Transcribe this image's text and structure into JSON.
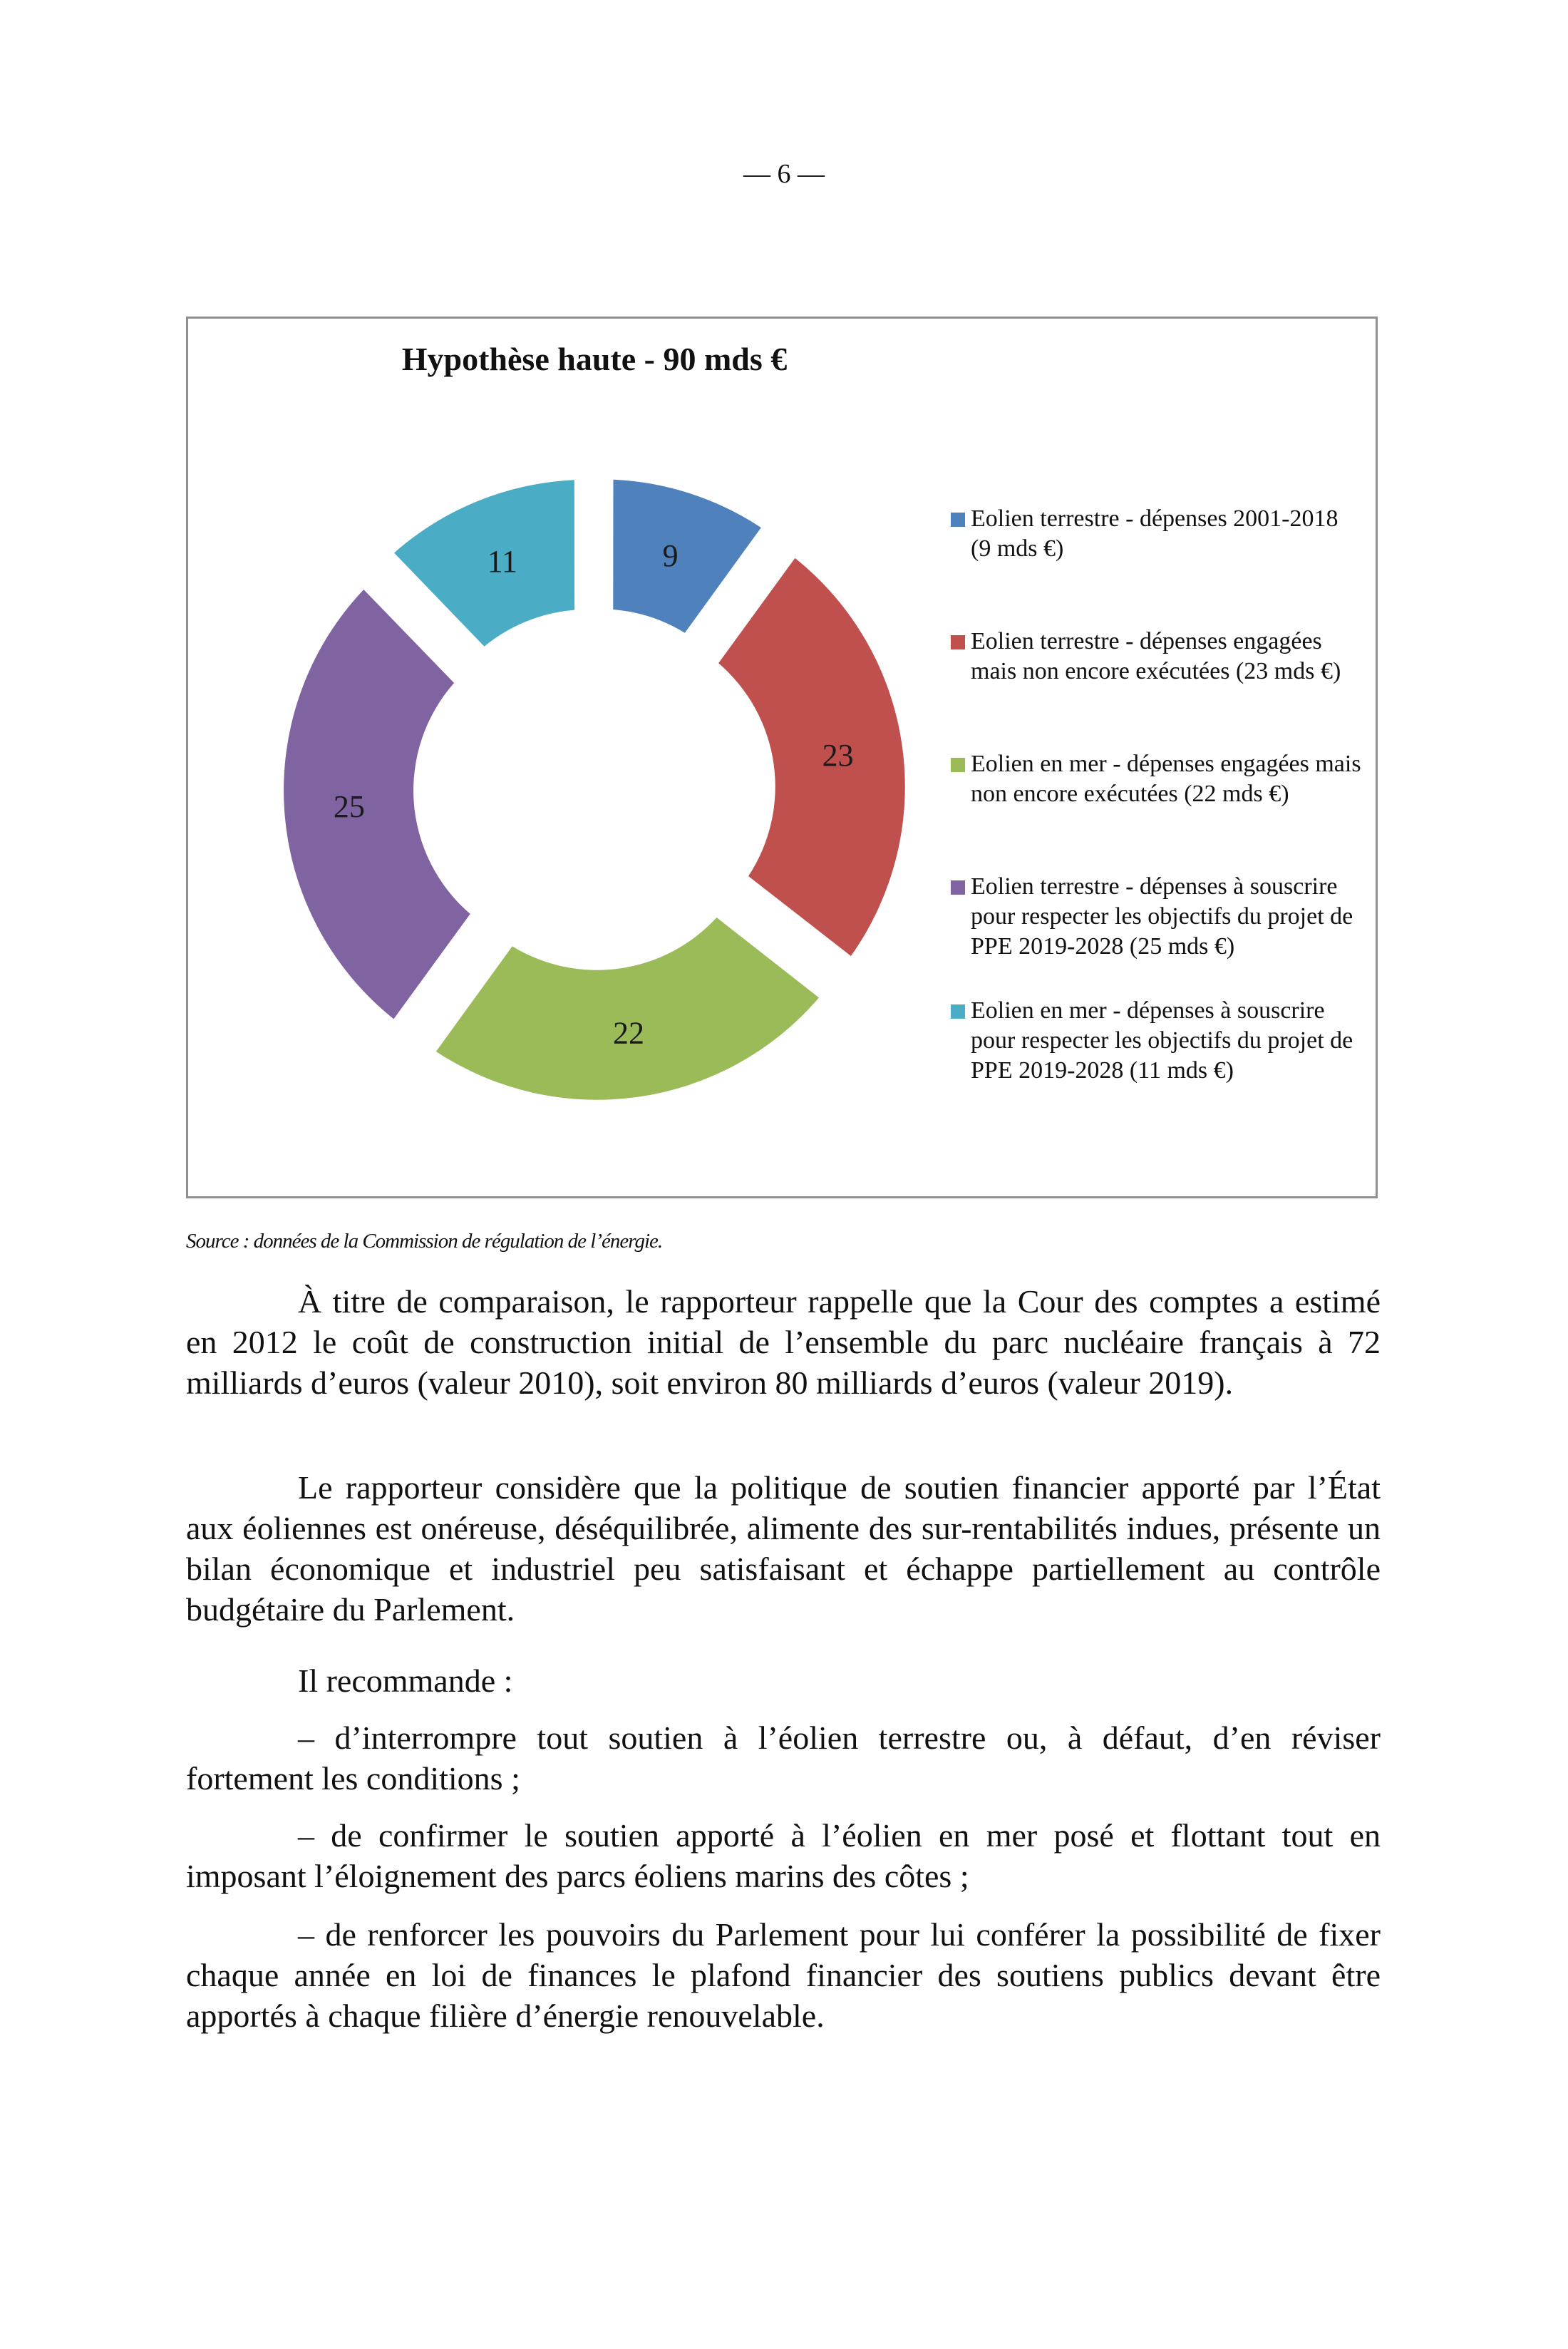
{
  "page_number": "— 6 —",
  "chart_data": {
    "type": "pie",
    "variant": "exploded-donut",
    "title": "Hypothèse haute - 90 mds €",
    "legend_position": "right",
    "series": [
      {
        "name": "Eolien terrestre - dépenses 2001-2018 (9 mds €)",
        "value": 9,
        "label": "9",
        "color": "#4f81bd"
      },
      {
        "name": "Eolien terrestre - dépenses engagées mais non encore exécutées (23 mds €)",
        "value": 23,
        "label": "23",
        "color": "#c0504d"
      },
      {
        "name": "Eolien en mer - dépenses engagées mais non encore exécutées (22 mds €)",
        "value": 22,
        "label": "22",
        "color": "#9bbb59"
      },
      {
        "name": "Eolien terrestre - dépenses à souscrire pour respecter les objectifs du projet de PPE 2019-2028 (25 mds €)",
        "value": 25,
        "label": "25",
        "color": "#8064a2"
      },
      {
        "name": "Eolien en mer - dépenses à souscrire pour respecter les objectifs du projet de PPE  2019-2028 (11 mds €)",
        "value": 11,
        "label": "11",
        "color": "#4bacc6"
      }
    ]
  },
  "source": "Source : données de la Commission de régulation de l’énergie.",
  "paragraphs": [
    "À titre de comparaison, le rapporteur rappelle que la Cour des comptes a estimé en 2012 le coût de construction initial de l’ensemble du parc nucléaire français à 72 milliards d’euros (valeur 2010), soit environ 80 milliards d’euros (valeur 2019).",
    "Le rapporteur considère que la politique de soutien financier apporté par l’État aux éoliennes est onéreuse, déséquilibrée, alimente des sur-rentabilités indues, présente un bilan économique et industriel peu satisfaisant et échappe partiellement au contrôle budgétaire du Parlement.",
    "Il recommande :",
    "– d’interrompre tout soutien à l’éolien terrestre ou, à défaut, d’en réviser fortement les conditions ;",
    "– de confirmer le soutien apporté à l’éolien en mer posé et flottant tout en imposant l’éloignement des parcs éoliens marins des côtes ;",
    "– de renforcer les pouvoirs du Parlement pour lui conférer la possibilité de fixer chaque année en loi de finances le plafond financier des soutiens publics devant être apportés à chaque filière d’énergie renouvelable."
  ]
}
